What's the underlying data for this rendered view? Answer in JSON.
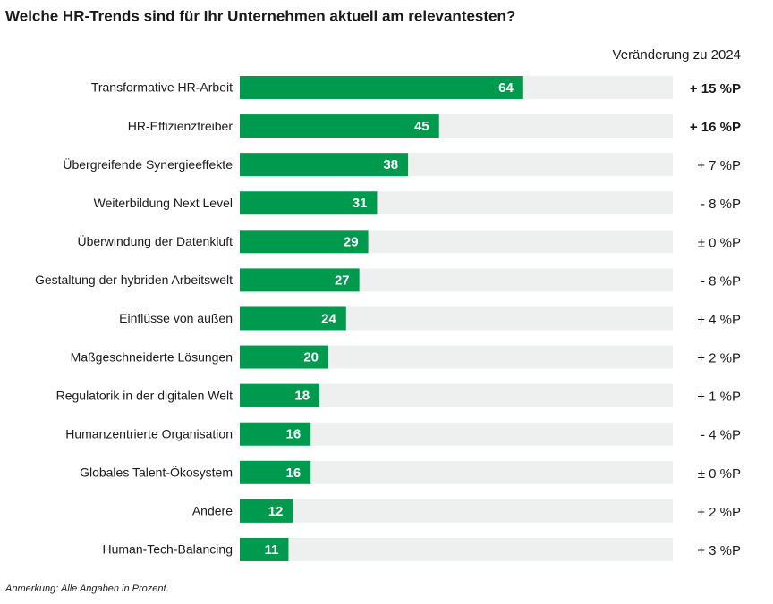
{
  "chart_data": {
    "type": "bar",
    "title": "Welche HR-Trends sind für Ihr Unternehmen aktuell am relevantesten?",
    "change_header": "Veränderung zu 2024",
    "categories": [
      "Transformative HR-Arbeit",
      "HR-Effizienztreiber",
      "Übergreifende Synergieeffekte",
      "Weiterbildung Next Level",
      "Überwindung der Datenkluft",
      "Gestaltung der hybriden Arbeitswelt",
      "Einflüsse von außen",
      "Maßgeschneiderte Lösungen",
      "Regulatorik in der digitalen Welt",
      "Humanzentrierte Organisation",
      "Globales Talent-Ökosystem",
      "Andere",
      "Human-Tech-Balancing"
    ],
    "values": [
      64,
      45,
      38,
      31,
      29,
      27,
      24,
      20,
      18,
      16,
      16,
      12,
      11
    ],
    "change_labels": [
      "+ 15 %P",
      "+ 16 %P",
      "+ 7 %P",
      "- 8 %P",
      "± 0 %P",
      "- 8 %P",
      "+ 4 %P",
      "+ 2 %P",
      "+ 1 %P",
      "- 4 %P",
      "± 0 %P",
      "+ 2 %P",
      "+ 3 %P"
    ],
    "change_bold": [
      true,
      true,
      false,
      false,
      false,
      false,
      false,
      false,
      false,
      false,
      false,
      false,
      false
    ],
    "color": "#009a4e",
    "xlim": [
      0,
      100
    ],
    "note": "Anmerkung: Alle Angaben in Prozent."
  }
}
